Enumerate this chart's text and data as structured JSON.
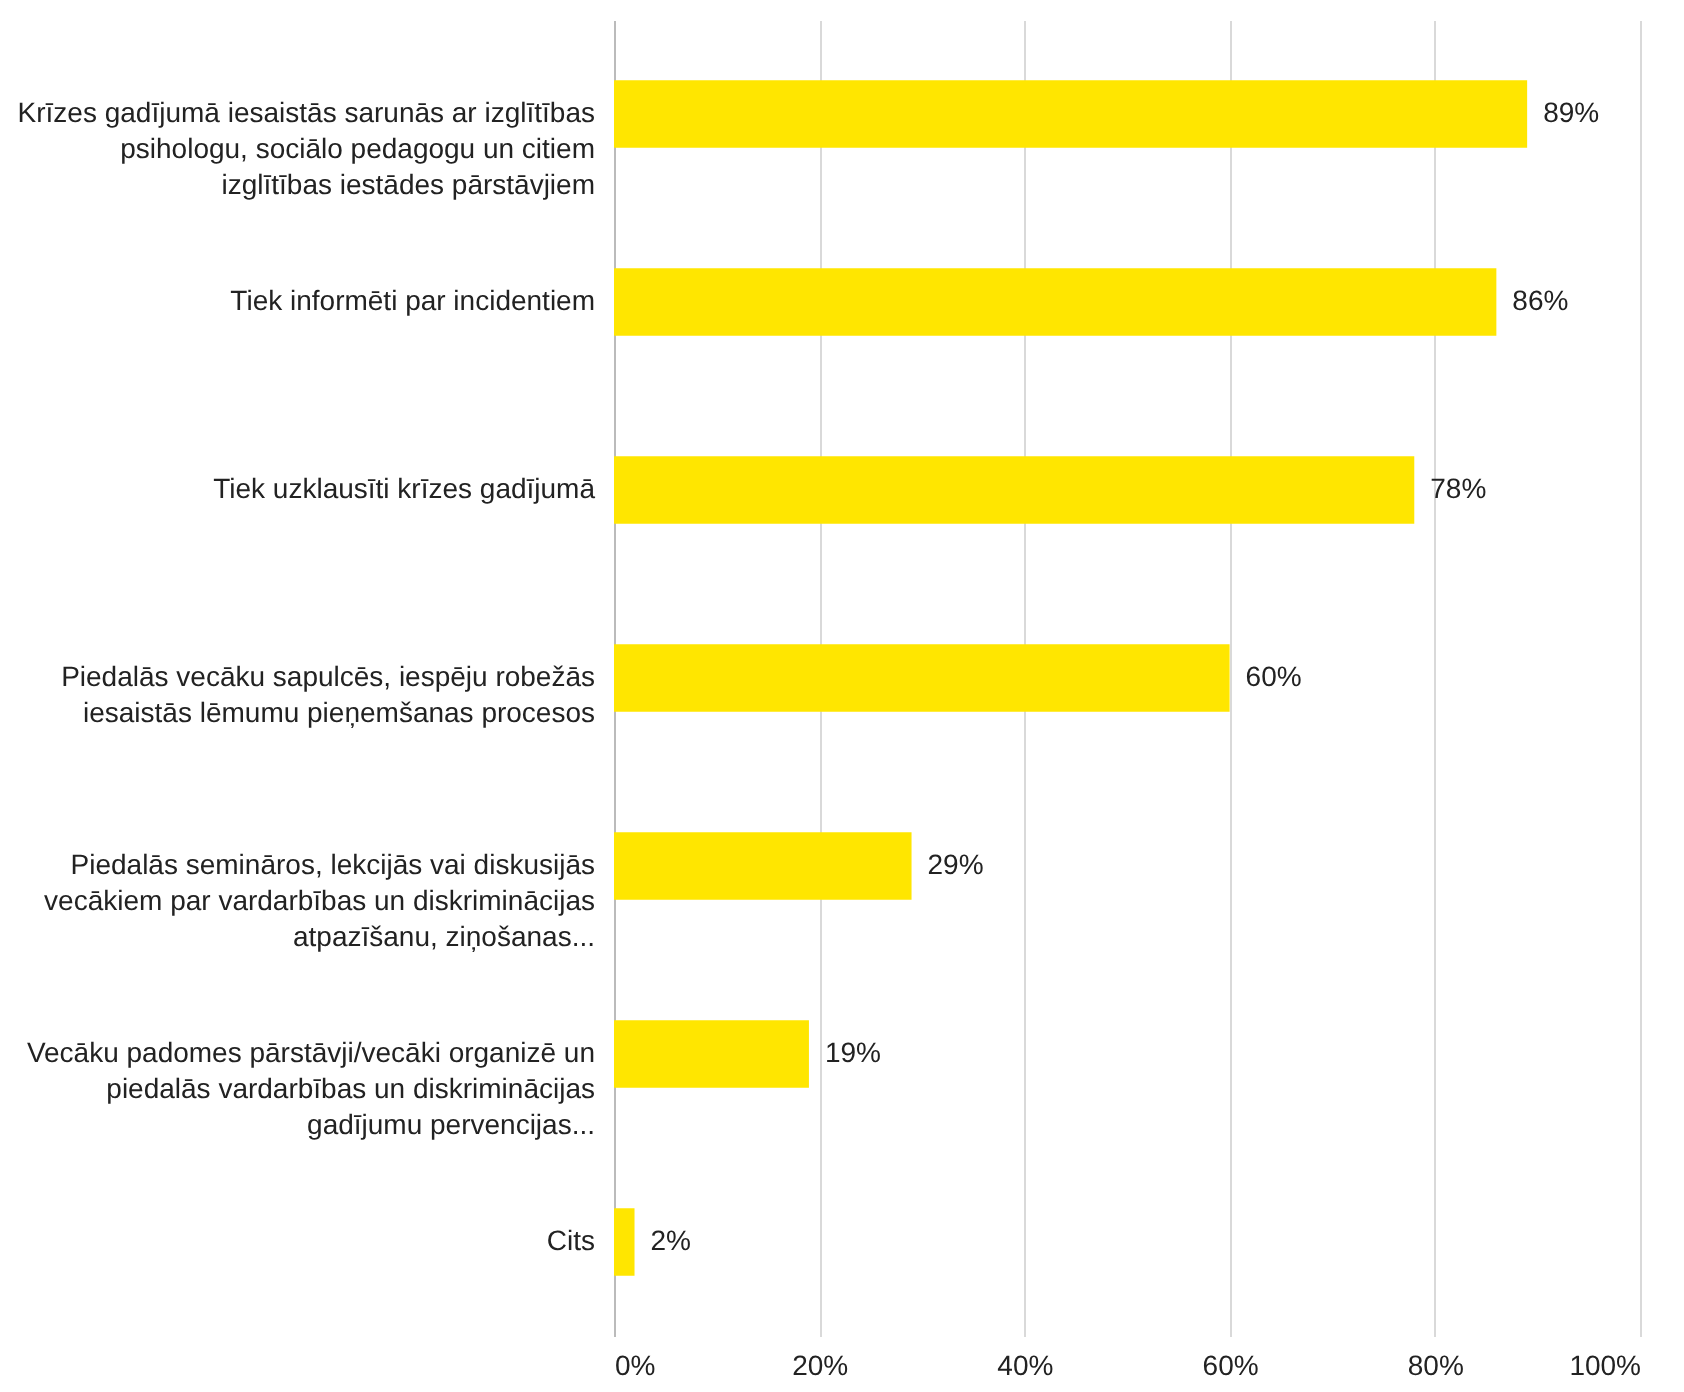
{
  "chart_data": {
    "type": "bar",
    "orientation": "horizontal",
    "categories": [
      "Krīzes gadījumā iesaistās sarunās ar izglītības psihologu, sociālo pedagogu un citiem izglītības iestādes pārstāvjiem",
      "Tiek informēti par incidentiem",
      "Tiek uzklausīti krīzes gadījumā",
      "Piedalās vecāku sapulcēs, iespēju robežās iesaistās lēmumu pieņemšanas procesos",
      "Piedalās semināros, lekcijās vai diskusijās vecākiem par vardarbības un diskriminācijas atpazīšanu, ziņošanas...",
      "Vecāku padomes pārstāvji/vecāki organizē un piedalās vardarbības un diskriminācijas gadījumu pervencijas...",
      "Cits"
    ],
    "values": [
      89,
      86,
      78,
      60,
      29,
      19,
      2
    ],
    "value_labels": [
      "89%",
      "86%",
      "78%",
      "60%",
      "29%",
      "19%",
      "2%"
    ],
    "color": "#ffe600",
    "xlim": [
      0,
      100
    ],
    "xticks": [
      {
        "value": 0,
        "label": "0%"
      },
      {
        "value": 20,
        "label": "20%"
      },
      {
        "value": 40,
        "label": "40%"
      },
      {
        "value": 60,
        "label": "60%"
      },
      {
        "value": 80,
        "label": "80%"
      },
      {
        "value": 100,
        "label": "100%"
      }
    ],
    "grid": "x"
  }
}
